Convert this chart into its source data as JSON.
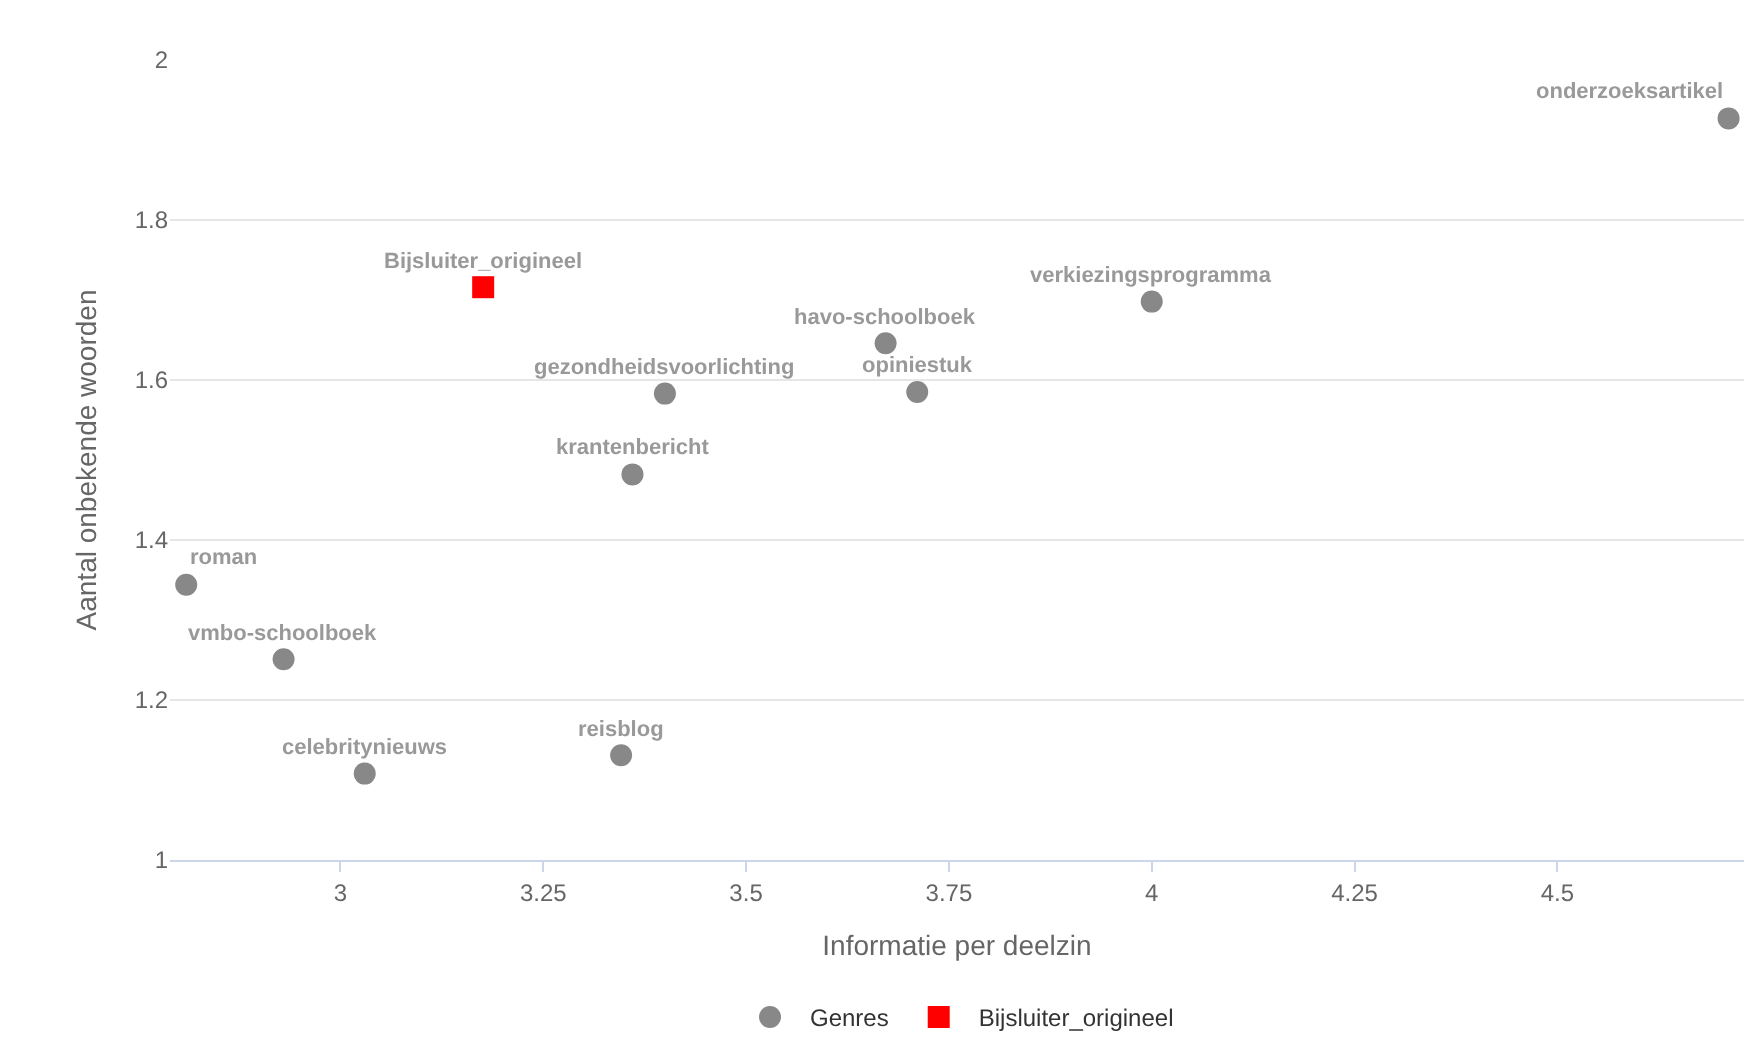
{
  "chart_data": {
    "type": "scatter",
    "xlabel": "Informatie per deelzin",
    "ylabel": "Aantal onbekende woorden",
    "xlim": [
      2.79,
      4.73
    ],
    "xticks": [
      3,
      3.25,
      3.5,
      3.75,
      4,
      4.25,
      4.5
    ],
    "ylim": [
      1,
      2
    ],
    "yticks": [
      1,
      1.2,
      1.4,
      1.6,
      1.8,
      2
    ],
    "grid": "y",
    "legend": "bottom",
    "series": [
      {
        "name": "Genres",
        "color": "#888888",
        "marker": "circle",
        "x": [
          2.81,
          2.93,
          3.03,
          3.346,
          3.36,
          3.4,
          3.672,
          3.711,
          4.0,
          4.711
        ],
        "values": [
          1.344,
          1.251,
          1.108,
          1.131,
          1.482,
          1.583,
          1.646,
          1.585,
          1.698,
          1.927
        ]
      },
      {
        "name": "Bijsluiter_origineel",
        "color": "#ff0000",
        "marker": "square",
        "x": [
          3.176
        ],
        "values": [
          1.716
        ]
      }
    ],
    "annotations": [
      {
        "text": "roman",
        "x": 2.81,
        "y": 1.344
      },
      {
        "text": "vmbo-schoolboek",
        "x": 2.93,
        "y": 1.251
      },
      {
        "text": "celebritynieuws",
        "x": 3.03,
        "y": 1.108
      },
      {
        "text": "reisblog",
        "x": 3.346,
        "y": 1.131
      },
      {
        "text": "krantenbericht",
        "x": 3.36,
        "y": 1.482
      },
      {
        "text": "gezondheidsvoorlichting",
        "x": 3.4,
        "y": 1.583
      },
      {
        "text": "havo-schoolboek",
        "x": 3.672,
        "y": 1.646
      },
      {
        "text": "opiniestuk",
        "x": 3.711,
        "y": 1.585
      },
      {
        "text": "verkiezingsprogramma",
        "x": 4.0,
        "y": 1.698
      },
      {
        "text": "onderzoeksartikel",
        "x": 4.711,
        "y": 1.927
      },
      {
        "text": "Bijsluiter_origineel",
        "x": 3.176,
        "y": 1.716
      }
    ]
  }
}
